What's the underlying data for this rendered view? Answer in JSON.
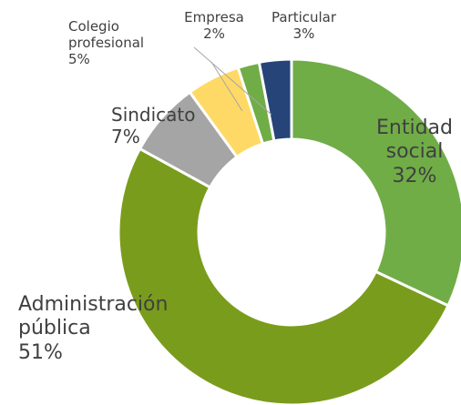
{
  "chart_data": {
    "type": "donut",
    "categories": [
      "Entidad social",
      "Administración pública",
      "Sindicato",
      "Colegio profesional",
      "Empresa",
      "Particular"
    ],
    "values": [
      32,
      51,
      7,
      5,
      2,
      3
    ],
    "value_labels": [
      "32%",
      "51%",
      "7%",
      "5%",
      "2%",
      "3%"
    ],
    "colors": [
      "#70ad47",
      "#7a9c1c",
      "#a5a5a5",
      "#ffd966",
      "#70ad47",
      "#264478"
    ]
  }
}
